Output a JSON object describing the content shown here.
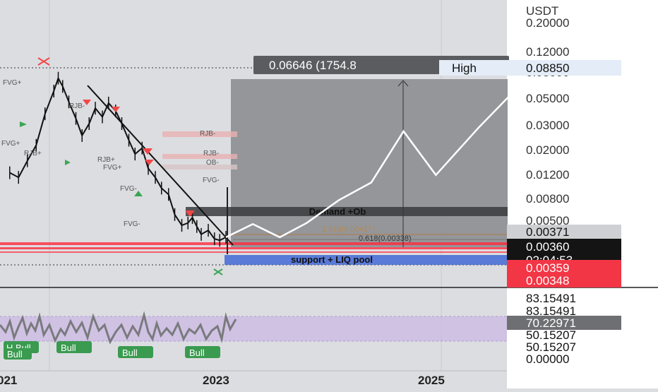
{
  "price_axis": {
    "currency": "USDT",
    "ticks": [
      "0.20000",
      "0.12000",
      "0.08000",
      "0.05000",
      "0.03000",
      "0.02000",
      "0.01200",
      "0.00800",
      "0.00500"
    ]
  },
  "badges": {
    "high_value": "0.08850",
    "high_label": "High",
    "target_box": "0.06646 (1754.8",
    "price_0371": "0.00371",
    "price_0360": "0.00360",
    "countdown": "02:04:53",
    "price_0359": "0.00359",
    "price_0348": "0.00348"
  },
  "zones": {
    "demand": "Demand +Ob",
    "support": "support + LIQ pool",
    "fib1": "1.618(0.00417)",
    "fib2": "0.618(0.00338)",
    "fib3": "1.414(0.00404)"
  },
  "labels": {
    "rjb": "RJB-",
    "ob": "OB-",
    "fvg_minus": "FVG-",
    "fvg_plus": "FVG+",
    "rjb_plus": "RJB+"
  },
  "oscillator": {
    "values": [
      "83.15491",
      "83.15491",
      "70.22971",
      "50.15207",
      "50.15207",
      "0.00000"
    ],
    "bull_labels": [
      "H Bull",
      "Bull",
      "Bull",
      "Bull",
      "Bull"
    ]
  },
  "time_axis": {
    "labels": [
      "021",
      "2023",
      "2025"
    ]
  },
  "chart_data": {
    "type": "line",
    "y_scale": "log",
    "ylim": [
      0.0028,
      0.22
    ],
    "series": [
      {
        "x": [
          2020.55,
          2020.65,
          2020.75,
          2020.85,
          2020.95,
          2021.05,
          2021.1,
          2021.15,
          2021.22,
          2021.3,
          2021.37,
          2021.45,
          2021.52,
          2021.6,
          2021.67,
          2021.75,
          2021.82,
          2021.9,
          2021.97,
          2022.05,
          2022.12,
          2022.2,
          2022.27,
          2022.35,
          2022.42,
          2022.5,
          2022.57,
          2022.62,
          2022.67,
          2022.72,
          2022.8,
          2022.87,
          2022.93,
          2023.0
        ],
        "values": [
          0.012,
          0.011,
          0.015,
          0.02,
          0.036,
          0.055,
          0.07,
          0.06,
          0.045,
          0.033,
          0.024,
          0.03,
          0.04,
          0.034,
          0.044,
          0.038,
          0.03,
          0.022,
          0.017,
          0.019,
          0.013,
          0.011,
          0.009,
          0.008,
          0.0055,
          0.0045,
          0.0047,
          0.0052,
          0.0044,
          0.0038,
          0.0041,
          0.0035,
          0.0034,
          0.0036
        ]
      },
      {
        "x": [
          2023.0,
          2023.25,
          2023.5,
          2023.75,
          2024.05,
          2024.35,
          2024.65,
          2024.95,
          2025.35,
          2025.65
        ],
        "values": [
          0.0036,
          0.0046,
          0.0036,
          0.0047,
          0.0072,
          0.01,
          0.026,
          0.0115,
          0.028,
          0.052
        ]
      }
    ]
  }
}
